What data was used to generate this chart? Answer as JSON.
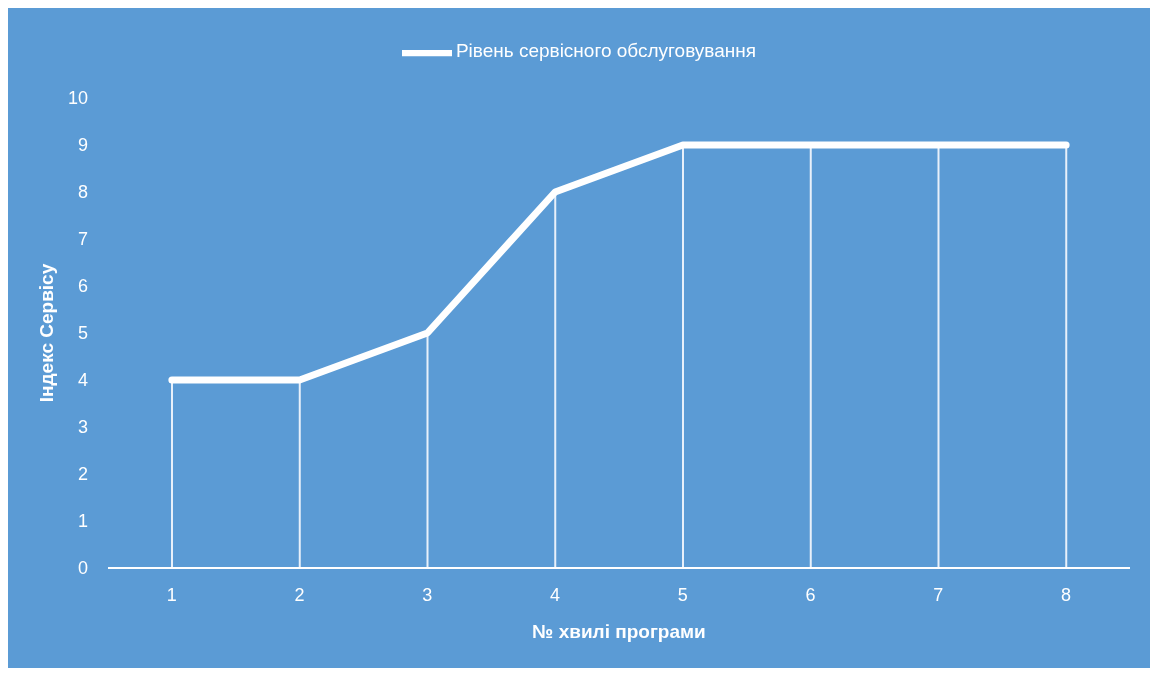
{
  "chart_data": {
    "type": "line",
    "xlabel": "№ хвилі програми",
    "ylabel": "Індекс Сервісу",
    "categories": [
      "1",
      "2",
      "3",
      "4",
      "5",
      "6",
      "7",
      "8"
    ],
    "series": [
      {
        "type": "bar",
        "color": "#e8f0fa",
        "values": [
          4,
          4,
          5,
          8,
          9,
          9,
          9,
          9
        ]
      },
      {
        "name": "Рівень сервісного обслуговування",
        "color": "#ffffff",
        "values": [
          4,
          4,
          5,
          8,
          9,
          9,
          9,
          9
        ]
      }
    ],
    "ylim": [
      0,
      10
    ],
    "yticks": [
      0,
      1,
      2,
      3,
      4,
      5,
      6,
      7,
      8,
      9,
      10
    ],
    "legend": "top",
    "marker": "none",
    "line_style": "solid"
  }
}
